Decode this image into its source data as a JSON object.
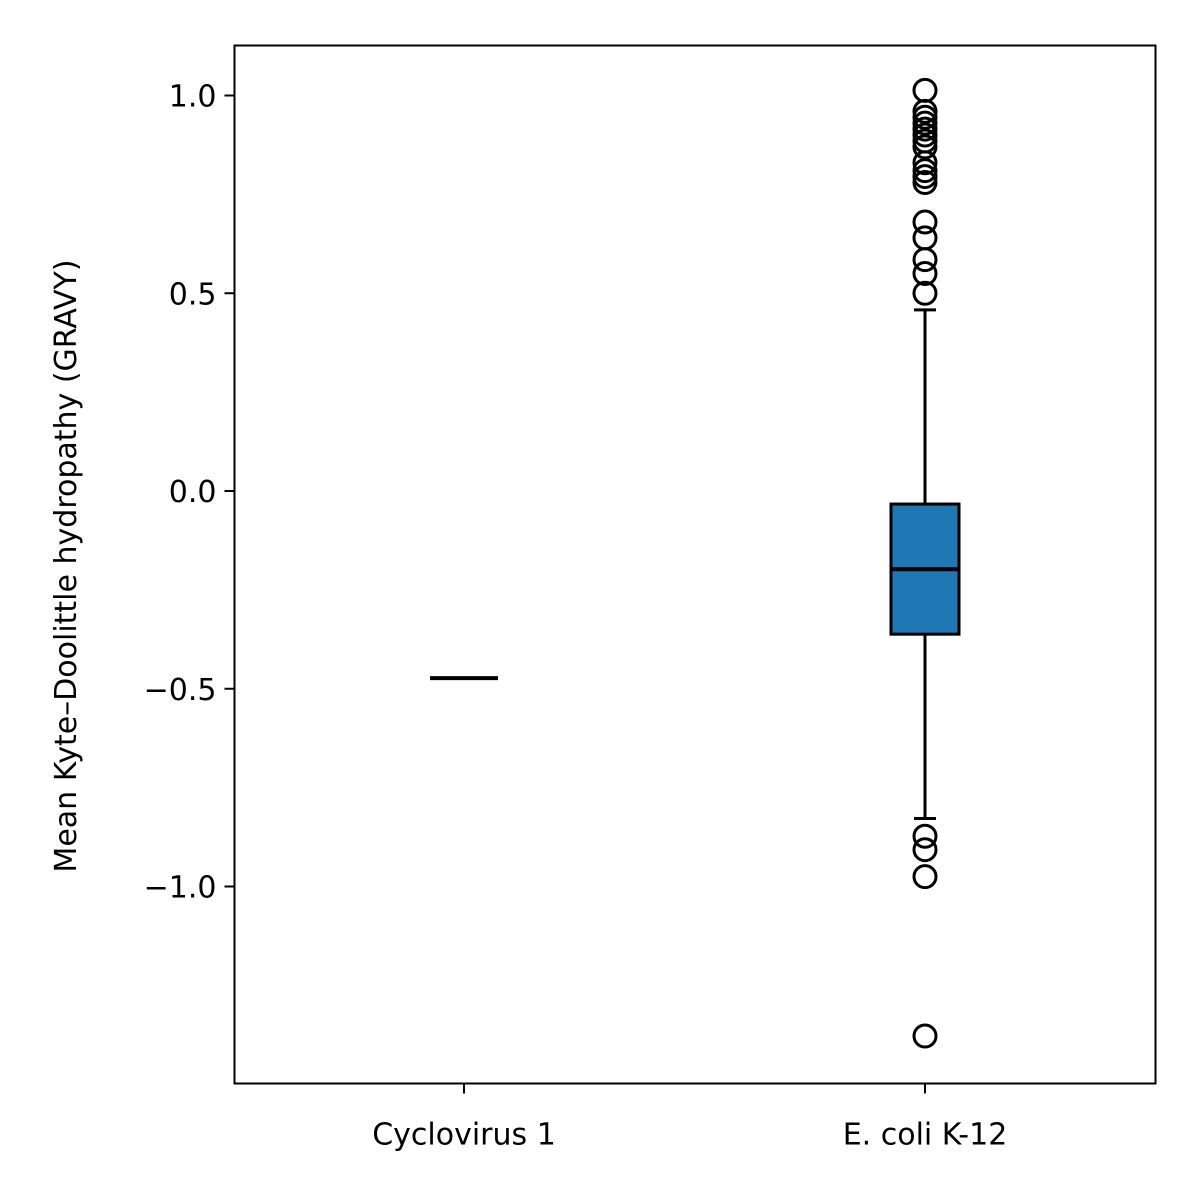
{
  "chart_data": {
    "type": "box",
    "title": "",
    "xlabel": "",
    "ylabel": "Mean Kyte–Doolittle hydropathy (GRAVY)",
    "ylim": [
      -1.47,
      1.13
    ],
    "yticks": [
      1.0,
      0.5,
      0.0,
      -0.5,
      -1.0
    ],
    "ytick_labels": [
      "1.0",
      "0.5",
      "0.0",
      "−0.5",
      "−1.0"
    ],
    "grid": false,
    "categories": [
      "Cyclovirus 1",
      "E. coli K-12"
    ],
    "series": [
      {
        "q1": -0.473,
        "median": -0.473,
        "q3": -0.473,
        "whisker_low": -0.473,
        "whisker_high": -0.473,
        "outliers": []
      },
      {
        "q1": -0.362,
        "median": -0.198,
        "q3": -0.033,
        "whisker_low": -0.828,
        "whisker_high": 0.458,
        "outliers": [
          1.013,
          0.96,
          0.945,
          0.93,
          0.915,
          0.9,
          0.885,
          0.87,
          0.83,
          0.81,
          0.795,
          0.78,
          0.68,
          0.64,
          0.585,
          0.55,
          0.5,
          -0.873,
          -0.907,
          -0.975,
          -1.378
        ]
      }
    ],
    "colors": {
      "box_fill": "#1f77b4",
      "line": "#000000"
    }
  }
}
